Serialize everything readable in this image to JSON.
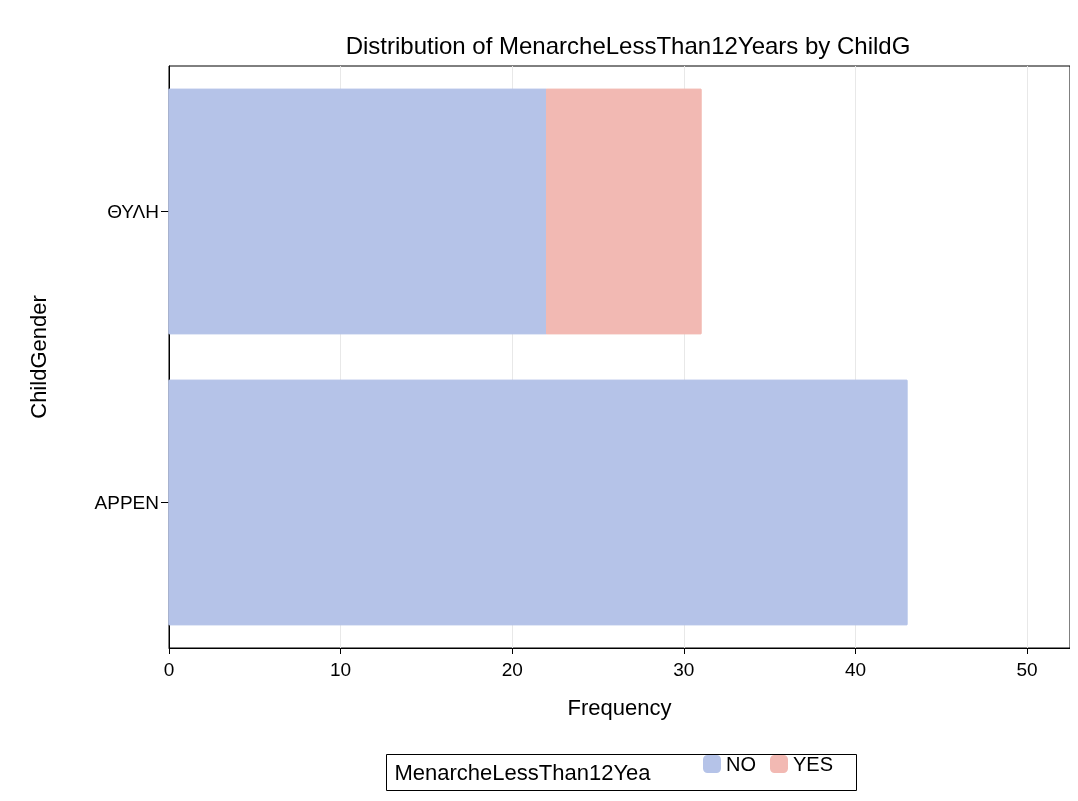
{
  "chart_data": {
    "type": "bar",
    "orientation": "horizontal",
    "stacked": true,
    "title": "Distribution of MenarcheLessThan12Years by ChildG",
    "xlabel": "Frequency",
    "ylabel": "ChildGender",
    "legend_title": "MenarcheLessThan12Yea",
    "categories": [
      "ΘΥΛΗ",
      "APPEN"
    ],
    "series": [
      {
        "name": "NO",
        "color": "#b5c3e8",
        "values": [
          22,
          43
        ]
      },
      {
        "name": "YES",
        "color": "#f2b9b3",
        "values": [
          9,
          null
        ]
      }
    ],
    "xlim": [
      0,
      52.5
    ],
    "xticks": [
      0,
      10,
      20,
      30,
      40,
      50
    ],
    "grid": "x",
    "legend": "bottom"
  }
}
